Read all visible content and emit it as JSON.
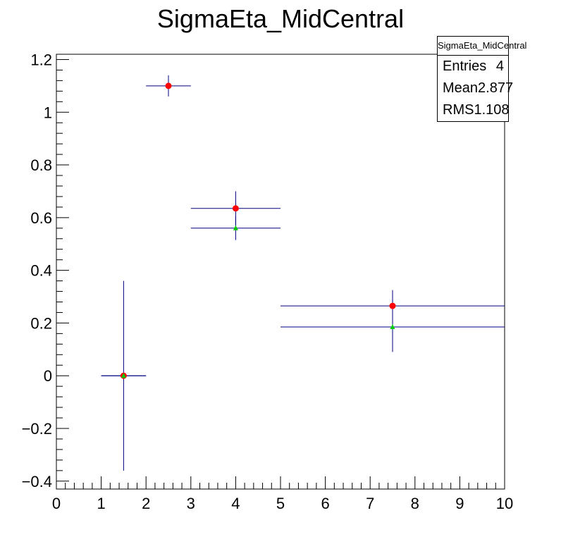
{
  "chart_data": {
    "type": "scatter",
    "title": "SigmaEta_MidCentral",
    "xlim": [
      0,
      10
    ],
    "ylim": [
      -0.43,
      1.22
    ],
    "x_ticks": [
      "0",
      "1",
      "2",
      "3",
      "4",
      "5",
      "6",
      "7",
      "8",
      "9",
      "10"
    ],
    "y_ticks": [
      "−0.4",
      "−0.2",
      "0",
      "0.2",
      "0.4",
      "0.6",
      "0.8",
      "1",
      "1.2"
    ],
    "grid": false,
    "series": [
      {
        "marker": "circle",
        "color": "#ff0000",
        "points": [
          {
            "x": 1.5,
            "y": 0.0,
            "xerr": 0.5,
            "yerr": 0.36
          },
          {
            "x": 2.5,
            "y": 1.1,
            "xerr": 0.5,
            "yerr": 0.04
          },
          {
            "x": 4.0,
            "y": 0.635,
            "xerr": 1.0,
            "yerr": 0.065
          },
          {
            "x": 7.5,
            "y": 0.265,
            "xerr": 2.5,
            "yerr": 0.06
          }
        ]
      },
      {
        "marker": "triangle",
        "color": "#00cc00",
        "points": [
          {
            "x": 1.5,
            "y": 0.0,
            "xerr": 0.5,
            "yerr": 0.0
          },
          {
            "x": 4.0,
            "y": 0.56,
            "xerr": 1.0,
            "yerr": 0.045
          },
          {
            "x": 7.5,
            "y": 0.185,
            "xerr": 2.5,
            "yerr": 0.095
          }
        ]
      }
    ]
  },
  "stats_box": {
    "title": "SigmaEta_MidCentral",
    "entries_label": "Entries",
    "entries_value": "4",
    "mean_label": "Mean",
    "mean_value": "2.877",
    "rms_label": "RMS",
    "rms_value": "1.108"
  }
}
